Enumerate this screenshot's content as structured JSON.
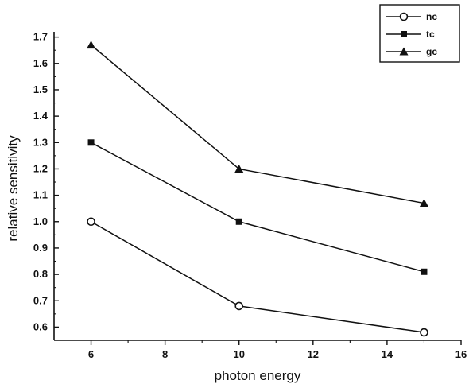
{
  "chart_data": {
    "type": "line",
    "xlabel": "photon energy",
    "ylabel": "relative sensitivity",
    "xlim": [
      5,
      16
    ],
    "ylim": [
      0.55,
      1.72
    ],
    "xticks": [
      "6",
      "8",
      "10",
      "12",
      "14",
      "16"
    ],
    "yticks": [
      "0.6",
      "0.7",
      "0.8",
      "0.9",
      "1.0",
      "1.1",
      "1.2",
      "1.3",
      "1.4",
      "1.5",
      "1.6",
      "1.7"
    ],
    "legend_position": "top-right",
    "grid": false,
    "x": [
      6,
      10,
      15
    ],
    "series": [
      {
        "name": "nc",
        "marker": "open-circle",
        "values": [
          1.0,
          0.68,
          0.58
        ]
      },
      {
        "name": "tc",
        "marker": "filled-square",
        "values": [
          1.3,
          1.0,
          0.81
        ]
      },
      {
        "name": "gc",
        "marker": "filled-triangle",
        "values": [
          1.67,
          1.2,
          1.07
        ]
      }
    ]
  }
}
